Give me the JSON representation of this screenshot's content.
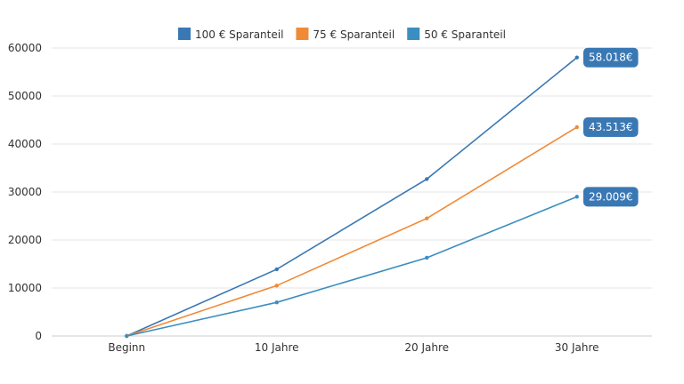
{
  "chart_data": {
    "type": "line",
    "categories": [
      "Beginn",
      "10 Jahre",
      "20 Jahre",
      "30 Jahre"
    ],
    "series": [
      {
        "name": "100 € Sparanteil",
        "color": "#3a78b4",
        "values": [
          0,
          13900,
          32700,
          58018
        ]
      },
      {
        "name": "75 € Sparanteil",
        "color": "#f08a37",
        "values": [
          0,
          10500,
          24500,
          43513
        ]
      },
      {
        "name": "50 € Sparanteil",
        "color": "#3a8fc0",
        "values": [
          0,
          7000,
          16300,
          29009
        ]
      }
    ],
    "end_labels": [
      "58.018€",
      "43.513€",
      "29.009€"
    ],
    "label_box_color": "#3a78b4",
    "ylim": [
      0,
      60000
    ],
    "y_ticks": [
      "0",
      "10000",
      "20000",
      "30000",
      "40000",
      "50000",
      "60000"
    ],
    "grid": true,
    "legend_position": "top-center"
  }
}
